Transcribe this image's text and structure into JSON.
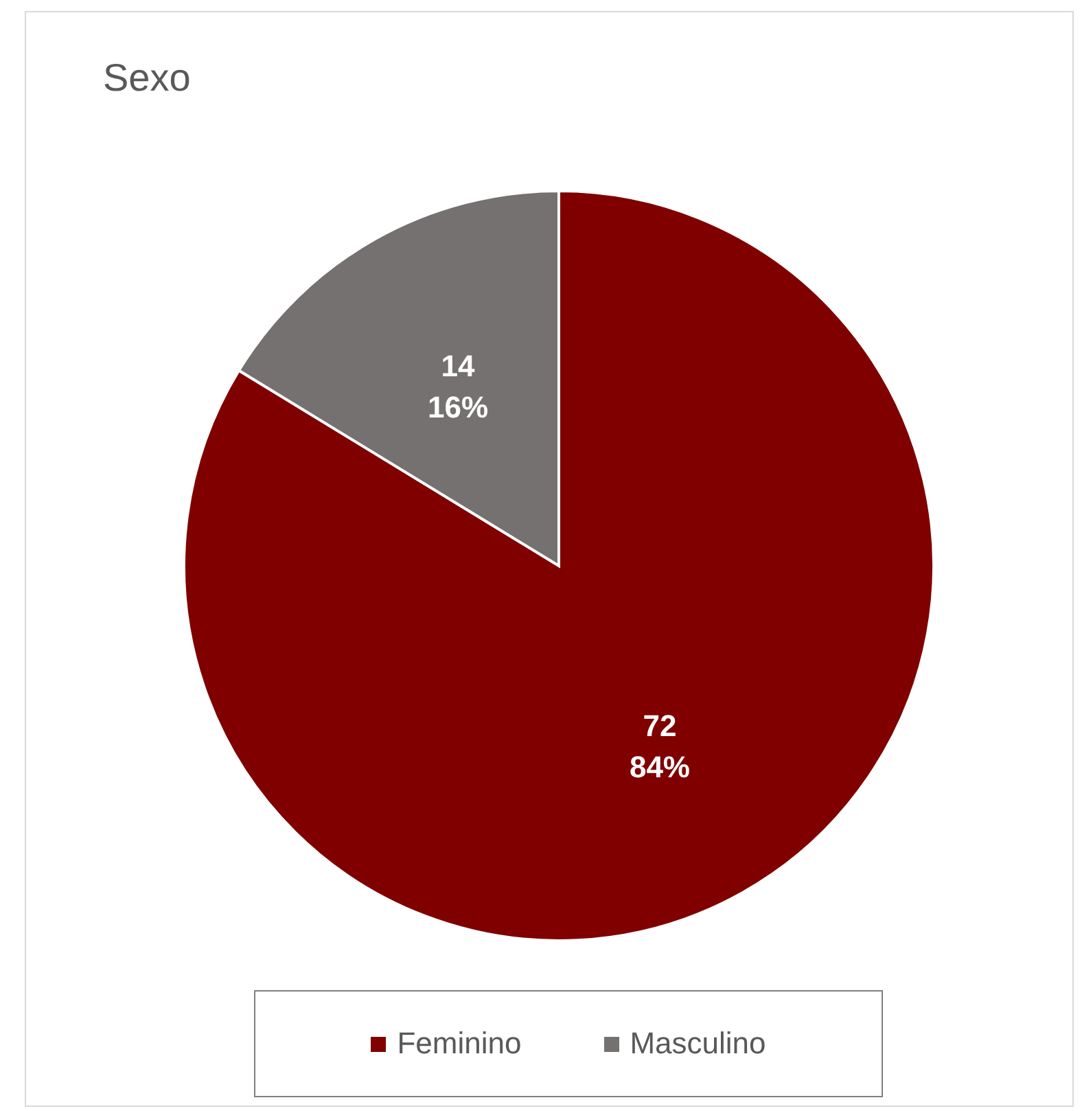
{
  "chart_data": {
    "type": "pie",
    "title": "Sexo",
    "categories": [
      "Feminino",
      "Masculino"
    ],
    "values": [
      72,
      14
    ],
    "colors": [
      "#800000",
      "#767171"
    ],
    "value_labels": [
      "72\n84%",
      "14\n16%"
    ],
    "legend": "bottom"
  }
}
